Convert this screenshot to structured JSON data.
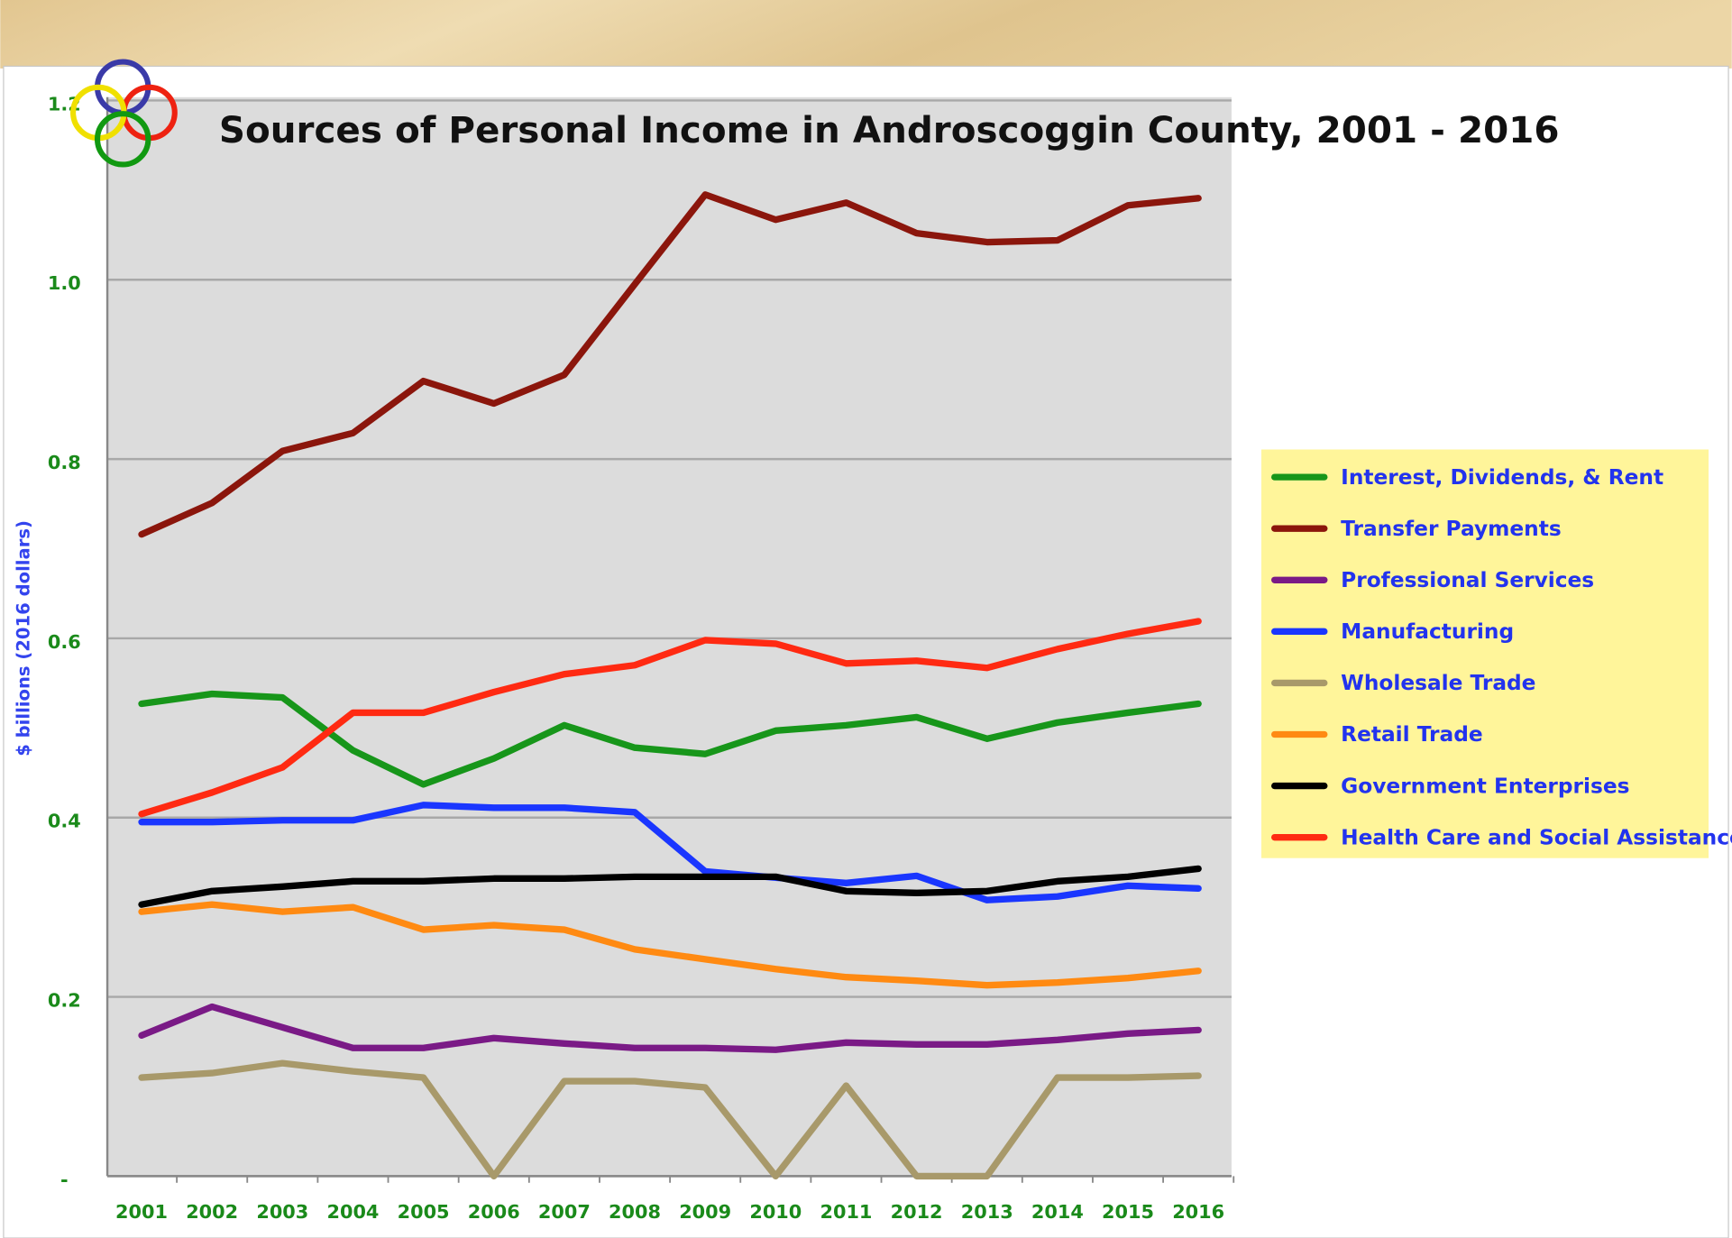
{
  "chart_data": {
    "type": "line",
    "title": "Sources of Personal Income in Androscoggin County, 2001 - 2016",
    "y_label": "$ billions (2016 dollars)",
    "categories": [
      "2001",
      "2002",
      "2003",
      "2004",
      "2005",
      "2006",
      "2007",
      "2008",
      "2009",
      "2010",
      "2011",
      "2012",
      "2013",
      "2014",
      "2015",
      "2016"
    ],
    "ylim": [
      0,
      1.2
    ],
    "yticks": [
      {
        "value": 0,
        "label": "-"
      },
      0.2,
      0.4,
      0.6,
      0.8,
      {
        "value": 1,
        "label": "1.0"
      },
      1.2
    ],
    "grid": true,
    "legend": "right",
    "series": [
      {
        "name": "Interest, Dividends, & Rent",
        "color": "#17961a",
        "values": [
          0.527,
          0.538,
          0.534,
          0.475,
          0.437,
          0.466,
          0.503,
          0.478,
          0.471,
          0.497,
          0.503,
          0.512,
          0.488,
          0.506,
          0.517,
          0.527
        ]
      },
      {
        "name": "Transfer Payments",
        "color": "#8b160c",
        "values": [
          0.716,
          0.751,
          0.809,
          0.829,
          0.887,
          0.862,
          0.894,
          0.995,
          1.095,
          1.067,
          1.086,
          1.052,
          1.042,
          1.044,
          1.083,
          1.091
        ]
      },
      {
        "name": "Professional Services",
        "color": "#7a1a86",
        "values": [
          0.157,
          0.189,
          0.166,
          0.143,
          0.143,
          0.154,
          0.148,
          0.143,
          0.143,
          0.141,
          0.149,
          0.147,
          0.147,
          0.152,
          0.159,
          0.163
        ]
      },
      {
        "name": "Manufacturing",
        "color": "#1a36ff",
        "values": [
          0.395,
          0.395,
          0.397,
          0.397,
          0.414,
          0.411,
          0.411,
          0.406,
          0.34,
          0.333,
          0.327,
          0.335,
          0.308,
          0.312,
          0.324,
          0.321
        ]
      },
      {
        "name": "Wholesale Trade",
        "color": "#a8996a",
        "values": [
          0.11,
          0.115,
          0.126,
          0.117,
          0.11,
          0,
          0.106,
          0.106,
          0.099,
          0,
          0.101,
          0,
          0,
          0.11,
          0.11,
          0.112
        ]
      },
      {
        "name": "Retail Trade",
        "color": "#ff8a12",
        "values": [
          0.295,
          0.303,
          0.295,
          0.3,
          0.275,
          0.28,
          0.275,
          0.253,
          0.242,
          0.231,
          0.222,
          0.218,
          0.213,
          0.216,
          0.221,
          0.229
        ]
      },
      {
        "name": "Government Enterprises",
        "color": "#000000",
        "values": [
          0.303,
          0.318,
          0.323,
          0.329,
          0.329,
          0.332,
          0.332,
          0.334,
          0.334,
          0.334,
          0.318,
          0.316,
          0.318,
          0.329,
          0.334,
          0.343
        ]
      },
      {
        "name": "Health Care and Social Assistance",
        "color": "#ff2a12",
        "values": [
          0.404,
          0.428,
          0.456,
          0.517,
          0.517,
          0.54,
          0.56,
          0.57,
          0.598,
          0.594,
          0.572,
          0.575,
          0.567,
          0.588,
          0.605,
          0.619
        ]
      }
    ]
  }
}
